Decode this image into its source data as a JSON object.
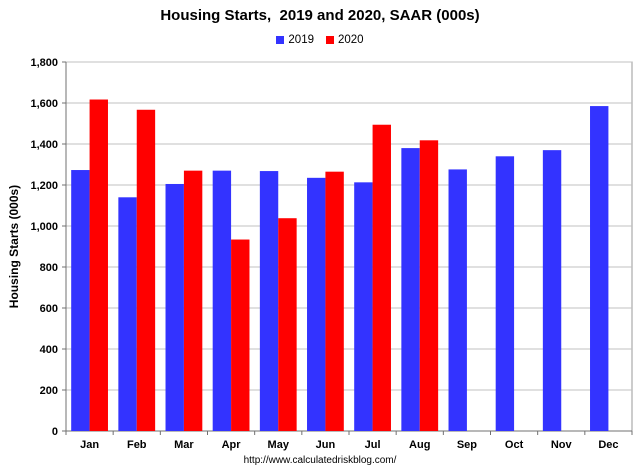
{
  "chart_data": {
    "type": "bar",
    "title": "Housing Starts,  2019 and 2020, SAAR (000s)",
    "ylabel": "Housing Starts (000s)",
    "xlabel": "",
    "categories": [
      "Jan",
      "Feb",
      "Mar",
      "Apr",
      "May",
      "Jun",
      "Jul",
      "Aug",
      "Sep",
      "Oct",
      "Nov",
      "Dec"
    ],
    "series": [
      {
        "name": "2019",
        "color": "#3333ff",
        "values": [
          1273,
          1140,
          1205,
          1270,
          1268,
          1235,
          1213,
          1380,
          1276,
          1340,
          1370,
          1585
        ]
      },
      {
        "name": "2020",
        "color": "#ff0000",
        "values": [
          1617,
          1567,
          1270,
          934,
          1038,
          1265,
          1494,
          1418,
          null,
          null,
          null,
          null
        ]
      }
    ],
    "ylim": [
      0,
      1800
    ],
    "yticks": [
      "0",
      "200",
      "400",
      "600",
      "800",
      "1,000",
      "1,200",
      "1,400",
      "1,600",
      "1,800"
    ],
    "grid": true,
    "legend_position": "top-center"
  },
  "source": "http://www.calculatedriskblog.com/"
}
